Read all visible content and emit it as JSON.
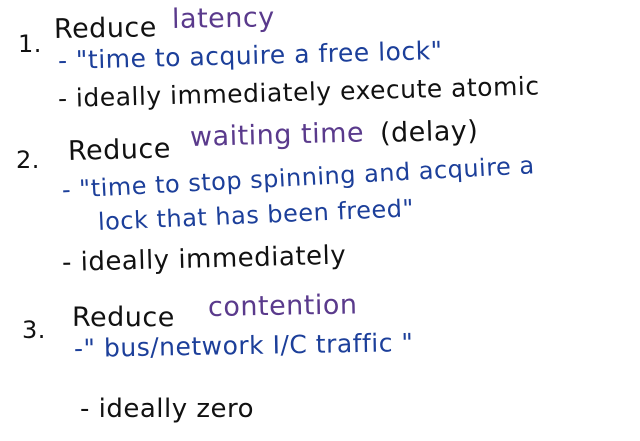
{
  "notes": {
    "item1": {
      "number": "1.",
      "heading": "Reduce",
      "term": "latency",
      "bullet1": "- \"time to acquire a free lock\"",
      "bullet2": "- ideally immediately execute atomic"
    },
    "item2": {
      "number": "2.",
      "heading": "Reduce",
      "term": "waiting time",
      "term_note": "(delay)",
      "bullet1_line1": "- \"time to stop spinning and acquire a",
      "bullet1_line2": "lock that has been freed\"",
      "bullet2": "- ideally immediately"
    },
    "item3": {
      "number": "3.",
      "heading": "Reduce",
      "term": "contention",
      "bullet1": "-\" bus/network I/C traffic \"",
      "bullet2": "- ideally zero"
    }
  },
  "colors": {
    "ink_dark": "#111111",
    "ink_purple": "#5a3a8c",
    "ink_blue": "#1c3f9a"
  }
}
